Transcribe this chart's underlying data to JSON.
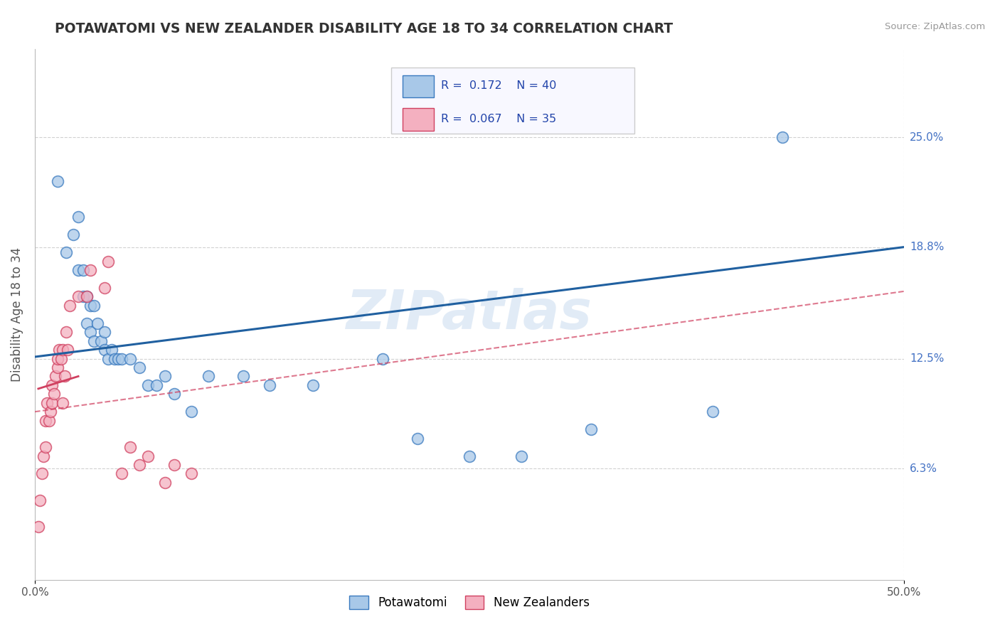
{
  "title": "POTAWATOMI VS NEW ZEALANDER DISABILITY AGE 18 TO 34 CORRELATION CHART",
  "source_text": "Source: ZipAtlas.com",
  "ylabel": "Disability Age 18 to 34",
  "xmin": 0.0,
  "xmax": 0.5,
  "ymin": 0.0,
  "ymax": 0.3,
  "yticks": [
    0.063,
    0.125,
    0.188,
    0.25
  ],
  "ytick_labels": [
    "6.3%",
    "12.5%",
    "18.8%",
    "25.0%"
  ],
  "xtick_labels": [
    "0.0%",
    "50.0%"
  ],
  "watermark": "ZIPatlas",
  "legend_R1": "0.172",
  "legend_N1": "40",
  "legend_R2": "0.067",
  "legend_N2": "35",
  "potawatomi_x": [
    0.013,
    0.018,
    0.022,
    0.025,
    0.025,
    0.028,
    0.028,
    0.03,
    0.03,
    0.032,
    0.032,
    0.034,
    0.034,
    0.036,
    0.038,
    0.04,
    0.04,
    0.042,
    0.044,
    0.046,
    0.048,
    0.05,
    0.055,
    0.06,
    0.065,
    0.07,
    0.075,
    0.08,
    0.09,
    0.1,
    0.12,
    0.135,
    0.16,
    0.2,
    0.22,
    0.25,
    0.28,
    0.32,
    0.39,
    0.43
  ],
  "potawatomi_y": [
    0.225,
    0.185,
    0.195,
    0.205,
    0.175,
    0.175,
    0.16,
    0.16,
    0.145,
    0.155,
    0.14,
    0.155,
    0.135,
    0.145,
    0.135,
    0.14,
    0.13,
    0.125,
    0.13,
    0.125,
    0.125,
    0.125,
    0.125,
    0.12,
    0.11,
    0.11,
    0.115,
    0.105,
    0.095,
    0.115,
    0.115,
    0.11,
    0.11,
    0.125,
    0.08,
    0.07,
    0.07,
    0.085,
    0.095,
    0.25
  ],
  "nz_x": [
    0.002,
    0.003,
    0.004,
    0.005,
    0.006,
    0.006,
    0.007,
    0.008,
    0.009,
    0.01,
    0.01,
    0.011,
    0.012,
    0.013,
    0.013,
    0.014,
    0.015,
    0.016,
    0.016,
    0.017,
    0.018,
    0.019,
    0.02,
    0.025,
    0.03,
    0.032,
    0.04,
    0.042,
    0.05,
    0.055,
    0.06,
    0.065,
    0.075,
    0.08,
    0.09
  ],
  "nz_y": [
    0.03,
    0.045,
    0.06,
    0.07,
    0.075,
    0.09,
    0.1,
    0.09,
    0.095,
    0.1,
    0.11,
    0.105,
    0.115,
    0.12,
    0.125,
    0.13,
    0.125,
    0.1,
    0.13,
    0.115,
    0.14,
    0.13,
    0.155,
    0.16,
    0.16,
    0.175,
    0.165,
    0.18,
    0.06,
    0.075,
    0.065,
    0.07,
    0.055,
    0.065,
    0.06
  ],
  "blue_marker_color": "#a8c8e8",
  "blue_edge_color": "#3a7abf",
  "pink_marker_color": "#f4b0c0",
  "pink_edge_color": "#d04060",
  "blue_line_color": "#2060a0",
  "pink_line_color": "#d04060",
  "pink_dash_color": "#d04060",
  "background_color": "#ffffff",
  "grid_color": "#cccccc",
  "title_color": "#333333",
  "right_label_color": "#4472c4"
}
